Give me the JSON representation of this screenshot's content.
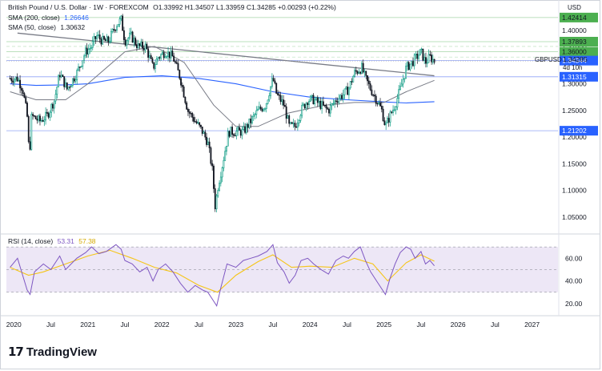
{
  "header": {
    "symbol_title": "British Pound / U.S. Dollar · 1W · FOREXCOM",
    "ohlc": "O1.33992 H1.34507 L1.33959 C1.34285 +0.00293 (+0.22%)",
    "sma200_label": "SMA (200, close)",
    "sma200_value": "1.26646",
    "sma50_label": "SMA (50, close)",
    "sma50_value": "1.30632",
    "rsi_label": "RSI (14, close)",
    "rsi_value": "53.31",
    "rsi_ma_value": "57.38"
  },
  "price_axis": {
    "currency": "USD",
    "ticks": [
      "1.40000",
      "1.37000",
      "1.35000",
      "1.30000",
      "1.25000",
      "1.20000",
      "1.15000",
      "1.10000",
      "1.05000"
    ],
    "tick_values": [
      1.4,
      1.37,
      1.35,
      1.3,
      1.25,
      1.2,
      1.15,
      1.1,
      1.05
    ],
    "range": [
      1.02,
      1.445
    ]
  },
  "price_markers": [
    {
      "label": "1.42414",
      "value": 1.42414,
      "color": "#4caf50",
      "text_color": "#131722"
    },
    {
      "label": "1.37893",
      "value": 1.37893,
      "color": "#4caf50",
      "text_color": "#131722"
    },
    {
      "label": "1.36000",
      "value": 1.36,
      "color": "#4caf50",
      "text_color": "#131722"
    },
    {
      "label": "1.34344",
      "value": 1.34344,
      "color": "#2962ff",
      "text_color": "#ffffff"
    },
    {
      "label": "1.31315",
      "value": 1.31315,
      "color": "#2962ff",
      "text_color": "#ffffff"
    },
    {
      "label": "1.21202",
      "value": 1.21202,
      "color": "#2962ff",
      "text_color": "#ffffff"
    }
  ],
  "last_price": {
    "symbol": "GBPUSD",
    "value": "1.34285",
    "countdown": "4d 10h",
    "numeric": 1.34285
  },
  "rsi_axis": {
    "ticks": [
      "60.00",
      "40.00",
      "20.00"
    ],
    "tick_values": [
      60,
      40,
      20
    ],
    "range": [
      10,
      80
    ],
    "band": [
      30,
      70
    ]
  },
  "time_axis": {
    "labels": [
      "2020",
      "Jul",
      "2021",
      "Jul",
      "2022",
      "Jul",
      "2023",
      "Jul",
      "2024",
      "Jul",
      "2025",
      "Jul",
      "2026",
      "Jul",
      "2027"
    ],
    "positions": [
      2020.0,
      2020.5,
      2021.0,
      2021.5,
      2022.0,
      2022.5,
      2023.0,
      2023.5,
      2024.0,
      2024.5,
      2025.0,
      2025.5,
      2026.0,
      2026.5,
      2027.0
    ],
    "range": [
      2019.9,
      2027.35
    ]
  },
  "colors": {
    "up": "#089981",
    "down": "#131722",
    "sma200": "#2962ff",
    "sma50": "#787b86",
    "rsi": "#7e57c2",
    "rsi_ma": "#f5c518",
    "trend": "#787b86"
  },
  "chart_data": {
    "type": "candlestick",
    "title": "British Pound / U.S. Dollar · 1W · FOREXCOM",
    "price_path": [
      [
        2019.95,
        1.31
      ],
      [
        2020.05,
        1.31
      ],
      [
        2020.12,
        1.29
      ],
      [
        2020.18,
        1.24
      ],
      [
        2020.21,
        1.16
      ],
      [
        2020.24,
        1.24
      ],
      [
        2020.35,
        1.23
      ],
      [
        2020.45,
        1.24
      ],
      [
        2020.55,
        1.27
      ],
      [
        2020.62,
        1.32
      ],
      [
        2020.72,
        1.29
      ],
      [
        2020.85,
        1.32
      ],
      [
        2020.97,
        1.36
      ],
      [
        2021.05,
        1.37
      ],
      [
        2021.12,
        1.39
      ],
      [
        2021.2,
        1.38
      ],
      [
        2021.28,
        1.38
      ],
      [
        2021.38,
        1.41
      ],
      [
        2021.45,
        1.42
      ],
      [
        2021.5,
        1.38
      ],
      [
        2021.58,
        1.39
      ],
      [
        2021.68,
        1.37
      ],
      [
        2021.78,
        1.37
      ],
      [
        2021.88,
        1.33
      ],
      [
        2021.95,
        1.35
      ],
      [
        2022.05,
        1.36
      ],
      [
        2022.15,
        1.35
      ],
      [
        2022.25,
        1.31
      ],
      [
        2022.35,
        1.25
      ],
      [
        2022.45,
        1.23
      ],
      [
        2022.55,
        1.21
      ],
      [
        2022.62,
        1.19
      ],
      [
        2022.68,
        1.14
      ],
      [
        2022.72,
        1.07
      ],
      [
        2022.76,
        1.11
      ],
      [
        2022.82,
        1.15
      ],
      [
        2022.9,
        1.21
      ],
      [
        2023.0,
        1.21
      ],
      [
        2023.1,
        1.21
      ],
      [
        2023.2,
        1.23
      ],
      [
        2023.3,
        1.25
      ],
      [
        2023.4,
        1.26
      ],
      [
        2023.5,
        1.31
      ],
      [
        2023.55,
        1.28
      ],
      [
        2023.65,
        1.26
      ],
      [
        2023.72,
        1.22
      ],
      [
        2023.8,
        1.22
      ],
      [
        2023.88,
        1.25
      ],
      [
        2023.97,
        1.27
      ],
      [
        2024.05,
        1.27
      ],
      [
        2024.15,
        1.26
      ],
      [
        2024.25,
        1.25
      ],
      [
        2024.35,
        1.27
      ],
      [
        2024.45,
        1.28
      ],
      [
        2024.52,
        1.29
      ],
      [
        2024.6,
        1.32
      ],
      [
        2024.7,
        1.33
      ],
      [
        2024.75,
        1.31
      ],
      [
        2024.82,
        1.29
      ],
      [
        2024.9,
        1.27
      ],
      [
        2024.97,
        1.25
      ],
      [
        2025.02,
        1.22
      ],
      [
        2025.08,
        1.24
      ],
      [
        2025.15,
        1.26
      ],
      [
        2025.22,
        1.29
      ],
      [
        2025.3,
        1.33
      ],
      [
        2025.38,
        1.34
      ],
      [
        2025.44,
        1.35
      ],
      [
        2025.5,
        1.36
      ],
      [
        2025.56,
        1.34
      ],
      [
        2025.62,
        1.35
      ],
      [
        2025.68,
        1.34285
      ]
    ],
    "sma200": [
      [
        2019.95,
        1.3
      ],
      [
        2020.3,
        1.297
      ],
      [
        2020.7,
        1.298
      ],
      [
        2021.0,
        1.3
      ],
      [
        2021.5,
        1.312
      ],
      [
        2022.0,
        1.315
      ],
      [
        2022.5,
        1.31
      ],
      [
        2023.0,
        1.3
      ],
      [
        2023.5,
        1.285
      ],
      [
        2024.0,
        1.275
      ],
      [
        2024.5,
        1.27
      ],
      [
        2025.0,
        1.266
      ],
      [
        2025.3,
        1.264
      ],
      [
        2025.68,
        1.26646
      ]
    ],
    "sma50": [
      [
        2019.95,
        1.285
      ],
      [
        2020.3,
        1.27
      ],
      [
        2020.7,
        1.27
      ],
      [
        2021.0,
        1.3
      ],
      [
        2021.5,
        1.36
      ],
      [
        2021.9,
        1.37
      ],
      [
        2022.3,
        1.34
      ],
      [
        2022.7,
        1.26
      ],
      [
        2023.0,
        1.22
      ],
      [
        2023.3,
        1.22
      ],
      [
        2023.7,
        1.245
      ],
      [
        2024.2,
        1.26
      ],
      [
        2024.6,
        1.265
      ],
      [
        2025.0,
        1.265
      ],
      [
        2025.3,
        1.285
      ],
      [
        2025.68,
        1.30632
      ]
    ],
    "trendline": [
      [
        2020.05,
        1.395
      ],
      [
        2025.68,
        1.315
      ]
    ],
    "rsi": [
      [
        2019.95,
        52
      ],
      [
        2020.05,
        60
      ],
      [
        2020.12,
        45
      ],
      [
        2020.18,
        32
      ],
      [
        2020.22,
        28
      ],
      [
        2020.28,
        48
      ],
      [
        2020.4,
        55
      ],
      [
        2020.5,
        50
      ],
      [
        2020.62,
        62
      ],
      [
        2020.7,
        50
      ],
      [
        2020.85,
        60
      ],
      [
        2020.97,
        65
      ],
      [
        2021.05,
        70
      ],
      [
        2021.15,
        64
      ],
      [
        2021.25,
        66
      ],
      [
        2021.38,
        72
      ],
      [
        2021.45,
        68
      ],
      [
        2021.5,
        58
      ],
      [
        2021.6,
        55
      ],
      [
        2021.7,
        48
      ],
      [
        2021.8,
        52
      ],
      [
        2021.88,
        40
      ],
      [
        2021.95,
        50
      ],
      [
        2022.05,
        55
      ],
      [
        2022.15,
        48
      ],
      [
        2022.25,
        38
      ],
      [
        2022.35,
        30
      ],
      [
        2022.45,
        36
      ],
      [
        2022.55,
        32
      ],
      [
        2022.62,
        30
      ],
      [
        2022.7,
        22
      ],
      [
        2022.74,
        18
      ],
      [
        2022.8,
        35
      ],
      [
        2022.88,
        55
      ],
      [
        2023.0,
        52
      ],
      [
        2023.1,
        58
      ],
      [
        2023.2,
        60
      ],
      [
        2023.3,
        62
      ],
      [
        2023.42,
        66
      ],
      [
        2023.5,
        72
      ],
      [
        2023.56,
        56
      ],
      [
        2023.65,
        48
      ],
      [
        2023.72,
        38
      ],
      [
        2023.8,
        45
      ],
      [
        2023.88,
        58
      ],
      [
        2023.97,
        60
      ],
      [
        2024.05,
        55
      ],
      [
        2024.15,
        50
      ],
      [
        2024.25,
        46
      ],
      [
        2024.35,
        58
      ],
      [
        2024.45,
        62
      ],
      [
        2024.52,
        60
      ],
      [
        2024.6,
        66
      ],
      [
        2024.68,
        70
      ],
      [
        2024.75,
        58
      ],
      [
        2024.82,
        48
      ],
      [
        2024.9,
        40
      ],
      [
        2024.97,
        33
      ],
      [
        2025.02,
        28
      ],
      [
        2025.08,
        42
      ],
      [
        2025.15,
        55
      ],
      [
        2025.22,
        65
      ],
      [
        2025.3,
        70
      ],
      [
        2025.36,
        68
      ],
      [
        2025.42,
        60
      ],
      [
        2025.5,
        66
      ],
      [
        2025.56,
        55
      ],
      [
        2025.62,
        58
      ],
      [
        2025.68,
        53.31
      ]
    ],
    "rsi_ma": [
      [
        2019.95,
        52
      ],
      [
        2020.2,
        45
      ],
      [
        2020.4,
        48
      ],
      [
        2020.7,
        55
      ],
      [
        2021.0,
        62
      ],
      [
        2021.3,
        67
      ],
      [
        2021.6,
        60
      ],
      [
        2021.9,
        52
      ],
      [
        2022.2,
        47
      ],
      [
        2022.5,
        36
      ],
      [
        2022.75,
        30
      ],
      [
        2023.0,
        45
      ],
      [
        2023.3,
        57
      ],
      [
        2023.5,
        63
      ],
      [
        2023.75,
        52
      ],
      [
        2024.0,
        53
      ],
      [
        2024.3,
        52
      ],
      [
        2024.6,
        60
      ],
      [
        2024.85,
        55
      ],
      [
        2025.05,
        40
      ],
      [
        2025.3,
        56
      ],
      [
        2025.5,
        63
      ],
      [
        2025.68,
        57.38
      ]
    ]
  }
}
